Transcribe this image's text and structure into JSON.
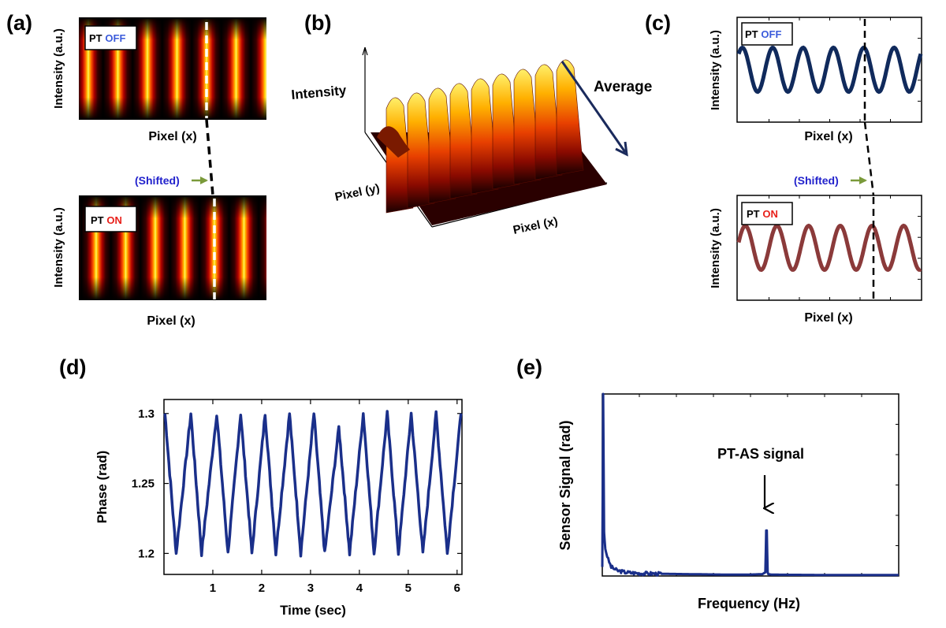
{
  "panels": {
    "a": {
      "label": "(a)",
      "off_prefix": "PT",
      "off_word": "OFF",
      "on_prefix": "PT",
      "on_word": "ON",
      "ylabel": "Intensity (a.u.)",
      "xlabel": "Pixel (x)",
      "shifted": "(Shifted)"
    },
    "b": {
      "label": "(b)",
      "z_label": "Intensity",
      "y_label": "Pixel (y)",
      "x_label": "Pixel (x)",
      "average": "Average"
    },
    "c": {
      "label": "(c)",
      "off_prefix": "PT",
      "off_word": "OFF",
      "on_prefix": "PT",
      "on_word": "ON",
      "ylabel": "Intensity (a.u.)",
      "xlabel": "Pixel (x)",
      "shifted": "(Shifted)"
    },
    "d": {
      "label": "(d)"
    },
    "e": {
      "label": "(e)"
    }
  },
  "colors": {
    "off_word": "#3b5bdb",
    "on_word": "#e8201a",
    "shifted_text": "#2222cc",
    "shift_arrow": "#7a9a3a",
    "off_curve": "#102a5c",
    "on_curve": "#8b3a3a",
    "data_line": "#1a2f8a",
    "average_arrow": "#1a2a5c"
  },
  "chart_data": [
    {
      "type": "line",
      "panel": "d",
      "title": "",
      "xlabel": "Time (sec)",
      "ylabel": "Phase (rad)",
      "xlim": [
        0,
        6.1
      ],
      "ylim": [
        1.185,
        1.31
      ],
      "xticks": [
        1,
        2,
        3,
        4,
        5,
        6
      ],
      "yticks": [
        1.2,
        1.25,
        1.3
      ],
      "ytick_labels": [
        "1.2",
        "1.25",
        "1.3"
      ],
      "series": [
        {
          "name": "phase",
          "description": "periodic oscillation between 1.2 and 1.3 rad",
          "x": [
            0.02,
            0.25,
            0.55,
            0.77,
            1.08,
            1.31,
            1.57,
            1.8,
            2.07,
            2.29,
            2.57,
            2.8,
            3.07,
            3.29,
            3.58,
            3.8,
            4.08,
            4.3,
            4.57,
            4.8,
            5.06,
            5.3,
            5.57,
            5.8,
            6.08
          ],
          "y": [
            1.3,
            1.2,
            1.3,
            1.2,
            1.3,
            1.2,
            1.3,
            1.2,
            1.3,
            1.2,
            1.3,
            1.2,
            1.3,
            1.2,
            1.29,
            1.2,
            1.3,
            1.2,
            1.3,
            1.2,
            1.3,
            1.2,
            1.3,
            1.2,
            1.3
          ]
        }
      ]
    },
    {
      "type": "line",
      "panel": "e",
      "title": "",
      "xlabel": "Frequency (Hz)",
      "ylabel": "Sensor Signal (rad)",
      "annotation": "PT-AS signal",
      "xlim": [
        0,
        1
      ],
      "ylim": [
        0,
        1
      ],
      "series": [
        {
          "name": "spectrum",
          "description": "normalized spectrum: DC spike, low-frequency decay, single peak",
          "x": [
            0.0,
            0.003,
            0.006,
            0.01,
            0.02,
            0.03,
            0.05,
            0.08,
            0.12,
            0.2,
            0.3,
            0.4,
            0.5,
            0.54,
            0.55,
            0.553,
            0.555,
            0.558,
            0.56,
            0.57,
            0.6,
            0.7,
            0.8,
            0.9,
            1.0
          ],
          "y": [
            0.05,
            1.0,
            0.24,
            0.15,
            0.09,
            0.05,
            0.03,
            0.02,
            0.015,
            0.012,
            0.01,
            0.008,
            0.008,
            0.01,
            0.02,
            0.25,
            0.25,
            0.02,
            0.01,
            0.008,
            0.007,
            0.006,
            0.005,
            0.005,
            0.005
          ]
        }
      ]
    }
  ]
}
